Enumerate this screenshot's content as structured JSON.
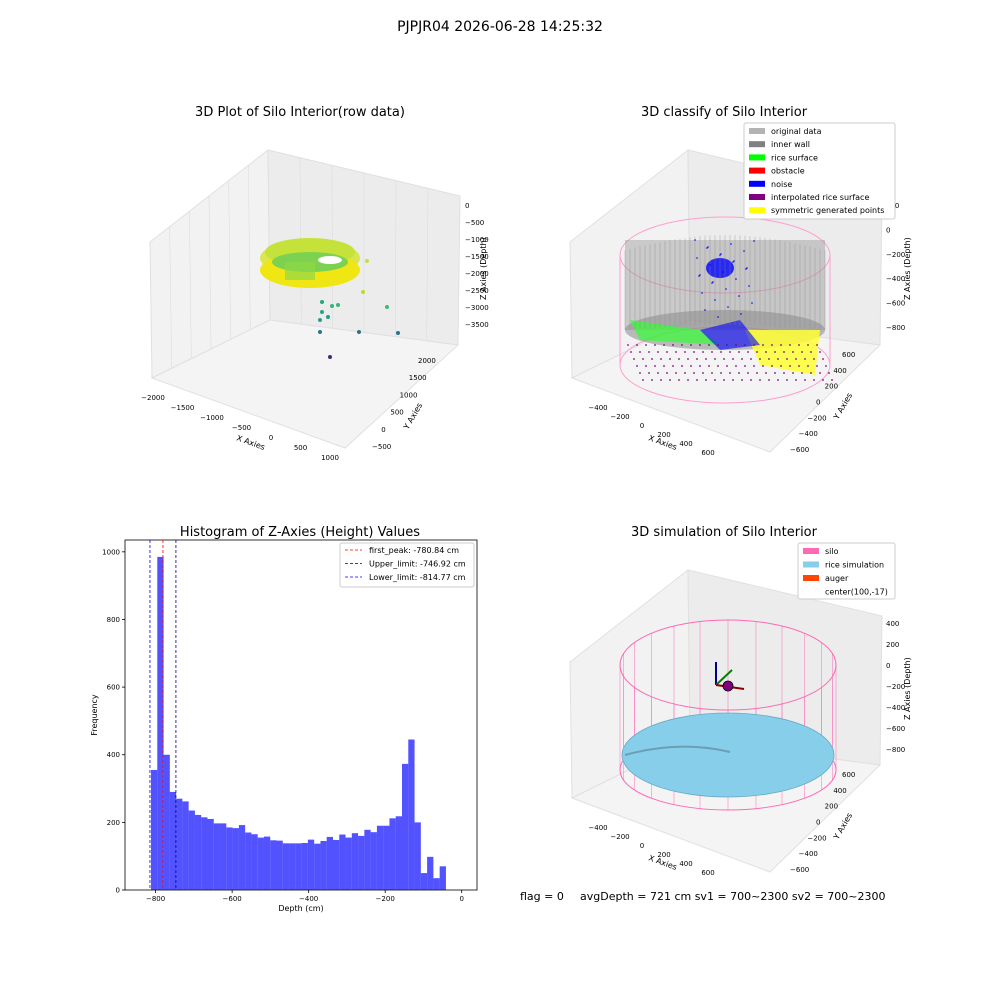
{
  "suptitle": "PJPJR04 2026-06-28 14:25:32",
  "panels": {
    "raw": {
      "title": "3D Plot of Silo Interior(row data)",
      "xlabel": "X Axies",
      "ylabel": "Y Axies",
      "zlabel": "Z Axies (Depth)",
      "xticks": [
        "−2000",
        "−1500",
        "−1000",
        "−500",
        "0",
        "500",
        "1000"
      ],
      "yticks": [
        "−500",
        "0",
        "500",
        "1000",
        "1500",
        "2000"
      ],
      "zticks": [
        "0",
        "−500",
        "−1000",
        "−1500",
        "−2000",
        "−2500",
        "−3000",
        "−3500"
      ]
    },
    "classify": {
      "title": "3D classify of Silo Interior",
      "xlabel": "X Axies",
      "ylabel": "Y Axies",
      "zlabel": "Z Axies (Depth)",
      "xticks": [
        "−400",
        "−200",
        "0",
        "200",
        "400",
        "600"
      ],
      "yticks": [
        "−600",
        "−400",
        "−200",
        "0",
        "200",
        "400",
        "600"
      ],
      "zticks": [
        "200",
        "0",
        "−200",
        "−400",
        "−600",
        "−800"
      ],
      "legend": [
        {
          "label": "original data",
          "color": "#b3b3b3"
        },
        {
          "label": "inner wall",
          "color": "#808080"
        },
        {
          "label": "rice surface",
          "color": "#00ff00"
        },
        {
          "label": "obstacle",
          "color": "#ff0000"
        },
        {
          "label": "noise",
          "color": "#0000ff"
        },
        {
          "label": "interpolated rice surface",
          "color": "#800080"
        },
        {
          "label": "symmetric generated points",
          "color": "#ffff00"
        }
      ]
    },
    "simulation": {
      "title": "3D simulation of Silo Interior",
      "xlabel": "X Axies",
      "ylabel": "Y Axies",
      "zlabel": "Z Axies (Depth)",
      "xticks": [
        "−400",
        "−200",
        "0",
        "200",
        "400",
        "600"
      ],
      "yticks": [
        "−600",
        "−400",
        "−200",
        "0",
        "200",
        "400",
        "600"
      ],
      "zticks": [
        "400",
        "200",
        "0",
        "−200",
        "−400",
        "−600",
        "−800"
      ],
      "legend": [
        {
          "label": "silo",
          "color": "#ff69b4"
        },
        {
          "label": "rice simulation",
          "color": "#87ceeb"
        },
        {
          "label": "auger",
          "color": "#ff4500"
        },
        {
          "label": "center(100,-17)",
          "color": ""
        }
      ]
    }
  },
  "chart_data": {
    "type": "bar",
    "title": "Histogram of Z-Axies (Height) Values",
    "xlabel": "Depth (cm)",
    "ylabel": "Frequency",
    "xlim": [
      -880,
      40
    ],
    "ylim": [
      0,
      1035
    ],
    "xticks": [
      "−800",
      "−600",
      "−400",
      "−200",
      "0"
    ],
    "yticks": [
      "0",
      "200",
      "400",
      "600",
      "800",
      "1000"
    ],
    "bar_color": "#0000ff",
    "bin_width": 16.4,
    "bin_start": -812,
    "values": [
      355,
      985,
      400,
      290,
      270,
      262,
      235,
      222,
      215,
      210,
      197,
      197,
      185,
      183,
      192,
      170,
      165,
      155,
      158,
      147,
      146,
      138,
      138,
      138,
      139,
      149,
      137,
      145,
      157,
      148,
      164,
      155,
      168,
      160,
      178,
      171,
      190,
      190,
      212,
      218,
      373,
      445,
      200,
      50,
      98,
      35,
      70
    ],
    "vlines": [
      {
        "label": "first_peak: -780.84 cm",
        "x": -780.84,
        "color": "#ff0000"
      },
      {
        "label": "Upper_limit: -746.92 cm",
        "x": -746.92,
        "color": "#00008b"
      },
      {
        "label": "Lower_limit: -814.77 cm",
        "x": -814.77,
        "color": "#0000ff"
      }
    ]
  },
  "footer": {
    "flag": "flag = 0",
    "stats": "avgDepth = 721 cm  sv1 = 700~2300  sv2 = 700~2300"
  }
}
